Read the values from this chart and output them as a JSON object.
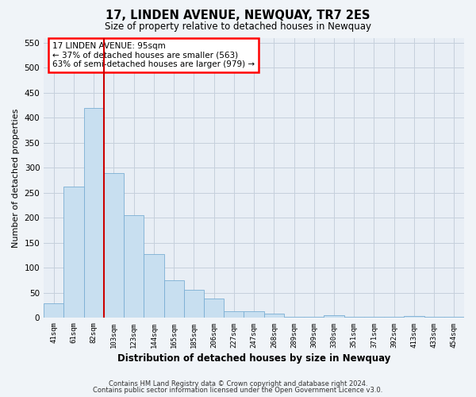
{
  "title": "17, LINDEN AVENUE, NEWQUAY, TR7 2ES",
  "subtitle": "Size of property relative to detached houses in Newquay",
  "xlabel": "Distribution of detached houses by size in Newquay",
  "ylabel": "Number of detached properties",
  "bin_labels": [
    "41sqm",
    "61sqm",
    "82sqm",
    "103sqm",
    "123sqm",
    "144sqm",
    "165sqm",
    "185sqm",
    "206sqm",
    "227sqm",
    "247sqm",
    "268sqm",
    "289sqm",
    "309sqm",
    "330sqm",
    "351sqm",
    "371sqm",
    "392sqm",
    "413sqm",
    "433sqm",
    "454sqm"
  ],
  "bar_heights": [
    30,
    262,
    420,
    290,
    205,
    127,
    75,
    57,
    38,
    14,
    14,
    8,
    3,
    2,
    6,
    2,
    2,
    2,
    4,
    2,
    3
  ],
  "bar_color": "#c8dff0",
  "bar_edge_color": "#7aaed4",
  "vline_color": "#cc0000",
  "ylim": [
    0,
    560
  ],
  "yticks": [
    0,
    50,
    100,
    150,
    200,
    250,
    300,
    350,
    400,
    450,
    500,
    550
  ],
  "annotation_title": "17 LINDEN AVENUE: 95sqm",
  "annotation_line1": "← 37% of detached houses are smaller (563)",
  "annotation_line2": "63% of semi-detached houses are larger (979) →",
  "footer_line1": "Contains HM Land Registry data © Crown copyright and database right 2024.",
  "footer_line2": "Contains public sector information licensed under the Open Government Licence v3.0.",
  "background_color": "#f0f4f8",
  "plot_bg_color": "#e8eef5",
  "grid_color": "#c5d0dc"
}
